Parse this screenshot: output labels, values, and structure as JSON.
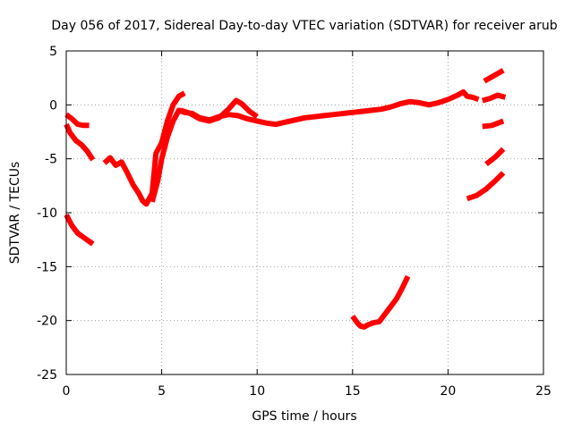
{
  "chart_data": {
    "type": "line",
    "title": "Day 056 of 2017, Sidereal Day-to-day VTEC variation (SDTVAR) for receiver arub",
    "xlabel": "GPS time / hours",
    "ylabel": "SDTVAR / TECUs",
    "xlim": [
      0,
      25
    ],
    "ylim": [
      -25,
      5
    ],
    "xticks": [
      "0",
      "5",
      "10",
      "15",
      "20",
      "25"
    ],
    "yticks": [
      "5",
      "0",
      "-5",
      "-10",
      "-15",
      "-20",
      "-25"
    ],
    "grid": true,
    "series_color": "#ff0000",
    "marker": "plus",
    "series": [
      {
        "name": "segment-1",
        "x": [
          0.0,
          0.3,
          0.6,
          0.9,
          1.2
        ],
        "y": [
          -0.9,
          -1.3,
          -1.8,
          -1.9,
          -1.9
        ]
      },
      {
        "name": "segment-2",
        "x": [
          0.0,
          0.2,
          0.5,
          0.8,
          1.1,
          1.4
        ],
        "y": [
          -1.8,
          -2.6,
          -3.3,
          -3.7,
          -4.3,
          -5.1
        ]
      },
      {
        "name": "segment-3",
        "x": [
          0.0,
          0.3,
          0.6,
          1.0,
          1.4
        ],
        "y": [
          -10.2,
          -11.2,
          -11.9,
          -12.4,
          -12.9
        ]
      },
      {
        "name": "segment-4",
        "x": [
          2.0,
          2.3,
          2.6,
          2.9,
          3.2,
          3.5,
          3.8,
          4.0,
          4.2,
          4.5,
          4.7,
          5.0,
          5.3,
          5.6,
          5.9,
          6.2
        ],
        "y": [
          -5.4,
          -4.9,
          -5.6,
          -5.3,
          -6.3,
          -7.4,
          -8.2,
          -8.9,
          -9.2,
          -8.2,
          -4.5,
          -3.5,
          -1.5,
          0.0,
          0.8,
          1.1
        ]
      },
      {
        "name": "segment-5",
        "x": [
          4.5,
          4.8,
          5.0,
          5.3,
          5.6,
          5.9,
          6.2,
          6.6,
          7.0,
          7.5,
          8.0,
          8.5,
          9.0,
          9.5,
          10.0,
          10.5,
          11.0,
          11.5,
          12.0,
          12.5,
          13.0,
          13.5,
          14.0,
          14.5,
          15.0,
          15.5,
          16.0,
          16.5,
          17.0,
          17.5,
          18.0,
          18.5,
          19.0,
          19.5,
          20.0,
          20.5,
          20.8,
          21.0,
          21.3,
          21.6
        ],
        "y": [
          -9.0,
          -7.0,
          -5.0,
          -3.0,
          -1.5,
          -0.5,
          -0.7,
          -0.8,
          -1.2,
          -1.4,
          -1.1,
          -0.9,
          -1.0,
          -1.3,
          -1.5,
          -1.7,
          -1.8,
          -1.6,
          -1.4,
          -1.2,
          -1.1,
          -1.0,
          -0.9,
          -0.8,
          -0.7,
          -0.6,
          -0.5,
          -0.4,
          -0.2,
          0.1,
          0.3,
          0.2,
          0.0,
          0.2,
          0.5,
          0.9,
          1.2,
          0.8,
          0.7,
          0.5
        ]
      },
      {
        "name": "segment-6",
        "x": [
          6.0,
          6.5,
          7.0,
          7.5,
          8.0,
          8.5,
          8.9,
          9.2,
          9.6,
          10.0
        ],
        "y": [
          -0.5,
          -0.8,
          -1.3,
          -1.5,
          -1.2,
          -0.4,
          0.4,
          0.1,
          -0.6,
          -1.1
        ]
      },
      {
        "name": "segment-7",
        "x": [
          21.8,
          22.2,
          22.6,
          23.0
        ],
        "y": [
          0.4,
          0.6,
          0.9,
          0.7
        ]
      },
      {
        "name": "segment-8",
        "x": [
          21.9,
          22.4,
          22.9
        ],
        "y": [
          2.2,
          2.7,
          3.2
        ]
      },
      {
        "name": "segment-9",
        "x": [
          21.8,
          22.3,
          22.9
        ],
        "y": [
          -2.0,
          -1.9,
          -1.5
        ]
      },
      {
        "name": "segment-10",
        "x": [
          22.0,
          22.5,
          22.9
        ],
        "y": [
          -5.5,
          -4.8,
          -4.1
        ]
      },
      {
        "name": "segment-11",
        "x": [
          21.0,
          21.5,
          22.0,
          22.5,
          22.9
        ],
        "y": [
          -8.7,
          -8.4,
          -7.8,
          -7.0,
          -6.3
        ]
      },
      {
        "name": "segment-12",
        "x": [
          15.0,
          15.2,
          15.4,
          15.6,
          15.8,
          16.1,
          16.4,
          16.7,
          17.0,
          17.3,
          17.6,
          17.9
        ],
        "y": [
          -19.6,
          -20.1,
          -20.5,
          -20.6,
          -20.4,
          -20.2,
          -20.1,
          -19.4,
          -18.7,
          -18.0,
          -17.0,
          -15.9
        ]
      }
    ]
  }
}
